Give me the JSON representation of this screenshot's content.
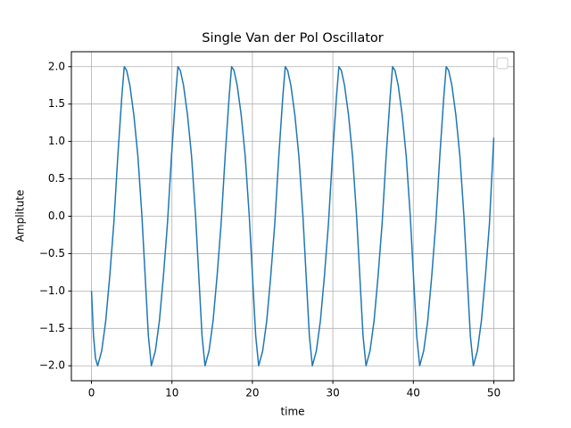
{
  "chart_data": {
    "type": "line",
    "title": "Single Van der Pol Oscillator",
    "x_label": "time",
    "y_label": "Amplitute",
    "x": [
      0,
      0.25,
      0.5,
      0.77,
      1.27,
      1.77,
      2.27,
      2.77,
      3.27,
      3.77,
      4.07,
      4.37,
      4.77,
      5.27,
      5.77,
      6.27,
      6.77,
      7.07,
      7.44,
      7.94,
      8.44,
      8.94,
      9.44,
      9.94,
      10.44,
      10.74,
      11.04,
      11.44,
      11.94,
      12.44,
      12.94,
      13.44,
      13.74,
      14.11,
      14.61,
      15.11,
      15.61,
      16.11,
      16.61,
      17.11,
      17.41,
      17.71,
      18.11,
      18.61,
      19.11,
      19.61,
      20.11,
      20.41,
      20.78,
      21.28,
      21.78,
      22.28,
      22.78,
      23.28,
      23.78,
      24.08,
      24.38,
      24.78,
      25.28,
      25.78,
      26.28,
      26.78,
      27.08,
      27.45,
      27.95,
      28.45,
      28.95,
      29.45,
      29.95,
      30.45,
      30.75,
      31.05,
      31.45,
      31.95,
      32.45,
      32.95,
      33.45,
      33.75,
      34.12,
      34.62,
      35.12,
      35.62,
      36.12,
      36.62,
      37.12,
      37.42,
      37.72,
      38.12,
      38.62,
      39.12,
      39.62,
      40.12,
      40.42,
      40.79,
      41.29,
      41.79,
      42.29,
      42.79,
      43.29,
      43.79,
      44.09,
      44.39,
      44.79,
      45.29,
      45.79,
      46.29,
      46.79,
      47.09,
      47.46,
      47.96,
      48.46,
      48.96,
      49.46,
      50
    ],
    "values": [
      -1.0,
      -1.6,
      -1.9,
      -2.0,
      -1.8,
      -1.4,
      -0.8,
      -0.1,
      0.8,
      1.6,
      2.0,
      1.95,
      1.75,
      1.35,
      0.8,
      0.0,
      -1.0,
      -1.6,
      -2.0,
      -1.8,
      -1.4,
      -0.8,
      -0.1,
      0.8,
      1.6,
      2.0,
      1.95,
      1.75,
      1.35,
      0.8,
      0.0,
      -1.0,
      -1.6,
      -2.0,
      -1.8,
      -1.4,
      -0.8,
      -0.1,
      0.8,
      1.6,
      2.0,
      1.95,
      1.75,
      1.35,
      0.8,
      0.0,
      -1.0,
      -1.6,
      -2.0,
      -1.8,
      -1.4,
      -0.8,
      -0.1,
      0.8,
      1.6,
      2.0,
      1.95,
      1.75,
      1.35,
      0.8,
      0.0,
      -1.0,
      -1.6,
      -2.0,
      -1.8,
      -1.4,
      -0.8,
      -0.1,
      0.8,
      1.6,
      2.0,
      1.95,
      1.75,
      1.35,
      0.8,
      0.0,
      -1.0,
      -1.6,
      -2.0,
      -1.8,
      -1.4,
      -0.8,
      -0.1,
      0.8,
      1.6,
      2.0,
      1.95,
      1.75,
      1.35,
      0.8,
      0.0,
      -1.0,
      -1.6,
      -2.0,
      -1.8,
      -1.4,
      -0.8,
      -0.1,
      0.8,
      1.6,
      2.0,
      1.95,
      1.75,
      1.35,
      0.8,
      0.0,
      -1.0,
      -1.6,
      -2.0,
      -1.8,
      -1.4,
      -0.8,
      -0.1,
      1.05
    ],
    "color": "#1f77b4",
    "xlim": [
      -2.5,
      52.5
    ],
    "xticks": [
      0,
      10,
      20,
      30,
      40,
      50
    ],
    "ylim": [
      -2.2,
      2.2
    ],
    "yticks": [
      {
        "value": -2.0,
        "label": "−2.0"
      },
      {
        "value": -1.5,
        "label": "−1.5"
      },
      {
        "value": -1.0,
        "label": "−1.0"
      },
      {
        "value": -0.5,
        "label": "−0.5"
      },
      {
        "value": 0.0,
        "label": "0.0"
      },
      0.5,
      {
        "value": 1.0,
        "label": "1.0"
      },
      1.5,
      {
        "value": 2.0,
        "label": "2.0"
      }
    ],
    "grid": true,
    "legend": "upper right"
  }
}
